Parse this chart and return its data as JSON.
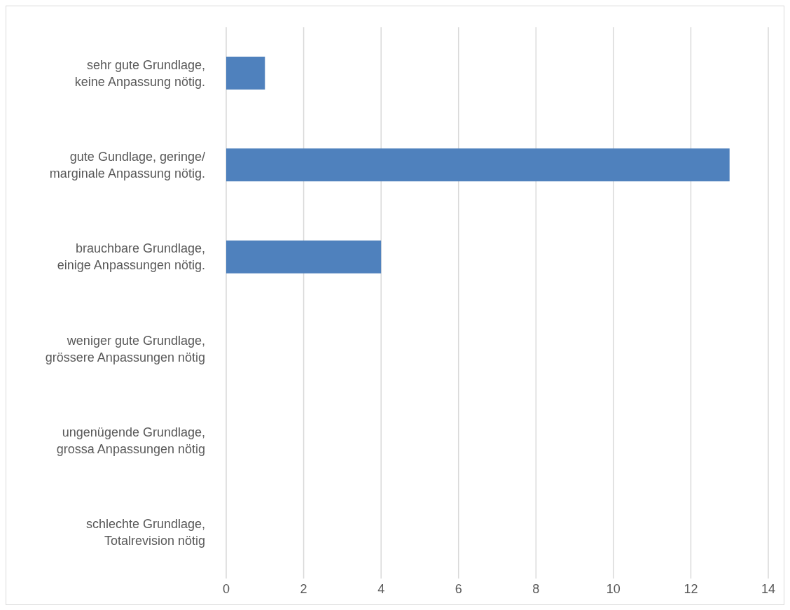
{
  "chart_data": {
    "type": "bar",
    "orientation": "horizontal",
    "categories": [
      "sehr gute Grundlage,\nkeine Anpassung nötig.",
      "gute Gundlage, geringe/\nmarginale Anpassung nötig.",
      "brauchbare Grundlage,\neinige Anpassungen nötig.",
      "weniger gute Grundlage,\ngrössere Anpassungen nötig",
      "ungenügende Grundlage,\ngrossa Anpassungen nötig",
      "schlechte Grundlage,\nTotalrevision nötig"
    ],
    "values": [
      1,
      13,
      4,
      0,
      0,
      0
    ],
    "color": "#4f81bd",
    "xlim": [
      0,
      14
    ],
    "xticks": [
      0,
      2,
      4,
      6,
      8,
      10,
      12,
      14
    ],
    "grid": "x"
  }
}
